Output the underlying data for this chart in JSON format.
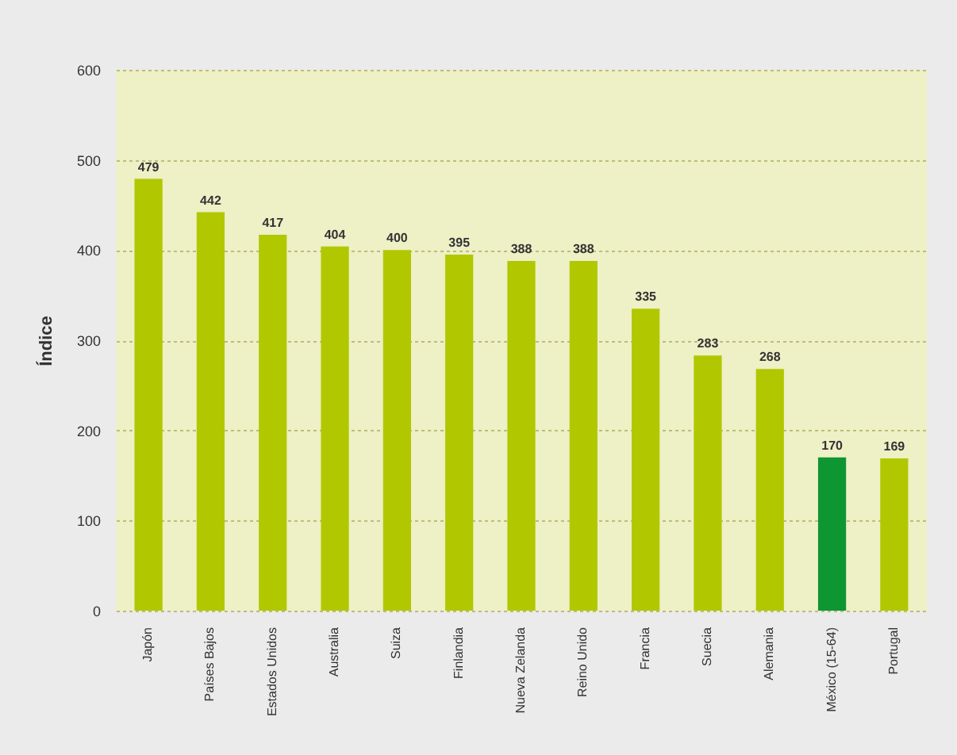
{
  "chart_data": {
    "type": "bar",
    "ylabel": "Índice",
    "categories": [
      "Japón",
      "Países Bajos",
      "Estados Unidos",
      "Australia",
      "Suiza",
      "Finlandia",
      "Nueva Zelanda",
      "Reino Unido",
      "Francia",
      "Suecia",
      "Alemania",
      "México (15-64)",
      "Portugal"
    ],
    "values": [
      479,
      442,
      417,
      404,
      400,
      395,
      388,
      388,
      335,
      283,
      268,
      170,
      169
    ],
    "colors": [
      "#b1c800",
      "#b1c800",
      "#b1c800",
      "#b1c800",
      "#b1c800",
      "#b1c800",
      "#b1c800",
      "#b1c800",
      "#b1c800",
      "#b1c800",
      "#b1c800",
      "#0e9632",
      "#b1c800"
    ],
    "ylim": [
      0,
      600
    ],
    "yticks": [
      0,
      100,
      200,
      300,
      400,
      500,
      600
    ],
    "grid": "y",
    "data_labels": true
  }
}
